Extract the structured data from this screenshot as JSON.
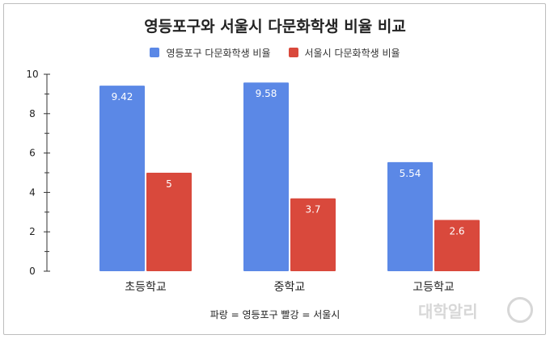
{
  "chart_data": {
    "type": "bar",
    "title": "영등포구와 서울시 다문화학생 비율 비교",
    "categories": [
      "초등학교",
      "중학교",
      "고등학교"
    ],
    "series": [
      {
        "name": "영등포구 다문화학생 비율",
        "values": [
          9.42,
          9.58,
          5.54
        ],
        "color": "#5b88e6"
      },
      {
        "name": "서울시 다문화학생 비율",
        "values": [
          5,
          3.7,
          2.6
        ],
        "color": "#d9493c"
      }
    ],
    "data_labels": [
      [
        "9.42",
        "9.58",
        "5.54"
      ],
      [
        "5",
        "3.7",
        "2.6"
      ]
    ],
    "ylim": [
      0,
      10
    ],
    "yticks": [
      0,
      2,
      4,
      6,
      8,
      10
    ],
    "xlabel": "",
    "ylabel": "",
    "grid": false,
    "legend_position": "top"
  },
  "caption": "파랑 = 영등포구 빨강 = 서울시",
  "watermark": "대학알리"
}
